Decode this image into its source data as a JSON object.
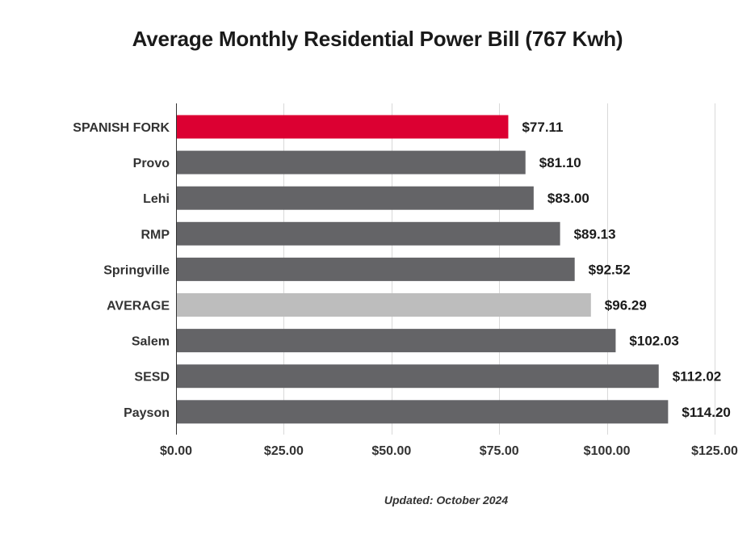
{
  "chart_data": {
    "type": "bar",
    "orientation": "horizontal",
    "title": "Average Monthly Residential Power Bill (767 Kwh)",
    "categories": [
      "SPANISH FORK",
      "Provo",
      "Lehi",
      "RMP",
      "Springville",
      "AVERAGE",
      "Salem",
      "SESD",
      "Payson"
    ],
    "values": [
      77.11,
      81.1,
      83.0,
      89.13,
      92.52,
      96.29,
      102.03,
      112.02,
      114.2
    ],
    "value_labels": [
      "$77.11",
      "$81.10",
      "$83.00",
      "$89.13",
      "$92.52",
      "$96.29",
      "$102.03",
      "$112.02",
      "$114.20"
    ],
    "bar_colors": [
      "#DC0032",
      "#646467",
      "#646467",
      "#646467",
      "#646467",
      "#BDBDBD",
      "#646467",
      "#646467",
      "#646467"
    ],
    "xlim": [
      0,
      125
    ],
    "x_ticks": [
      0,
      25,
      50,
      75,
      100,
      125
    ],
    "x_tick_labels": [
      "$0.00",
      "$25.00",
      "$50.00",
      "$75.00",
      "$100.00",
      "$125.00"
    ],
    "xlabel": "",
    "ylabel": "",
    "grid": "vertical",
    "gridline_color": "#D9D9D9",
    "axis_color": "#333333"
  },
  "footnote": "Updated: October 2024"
}
